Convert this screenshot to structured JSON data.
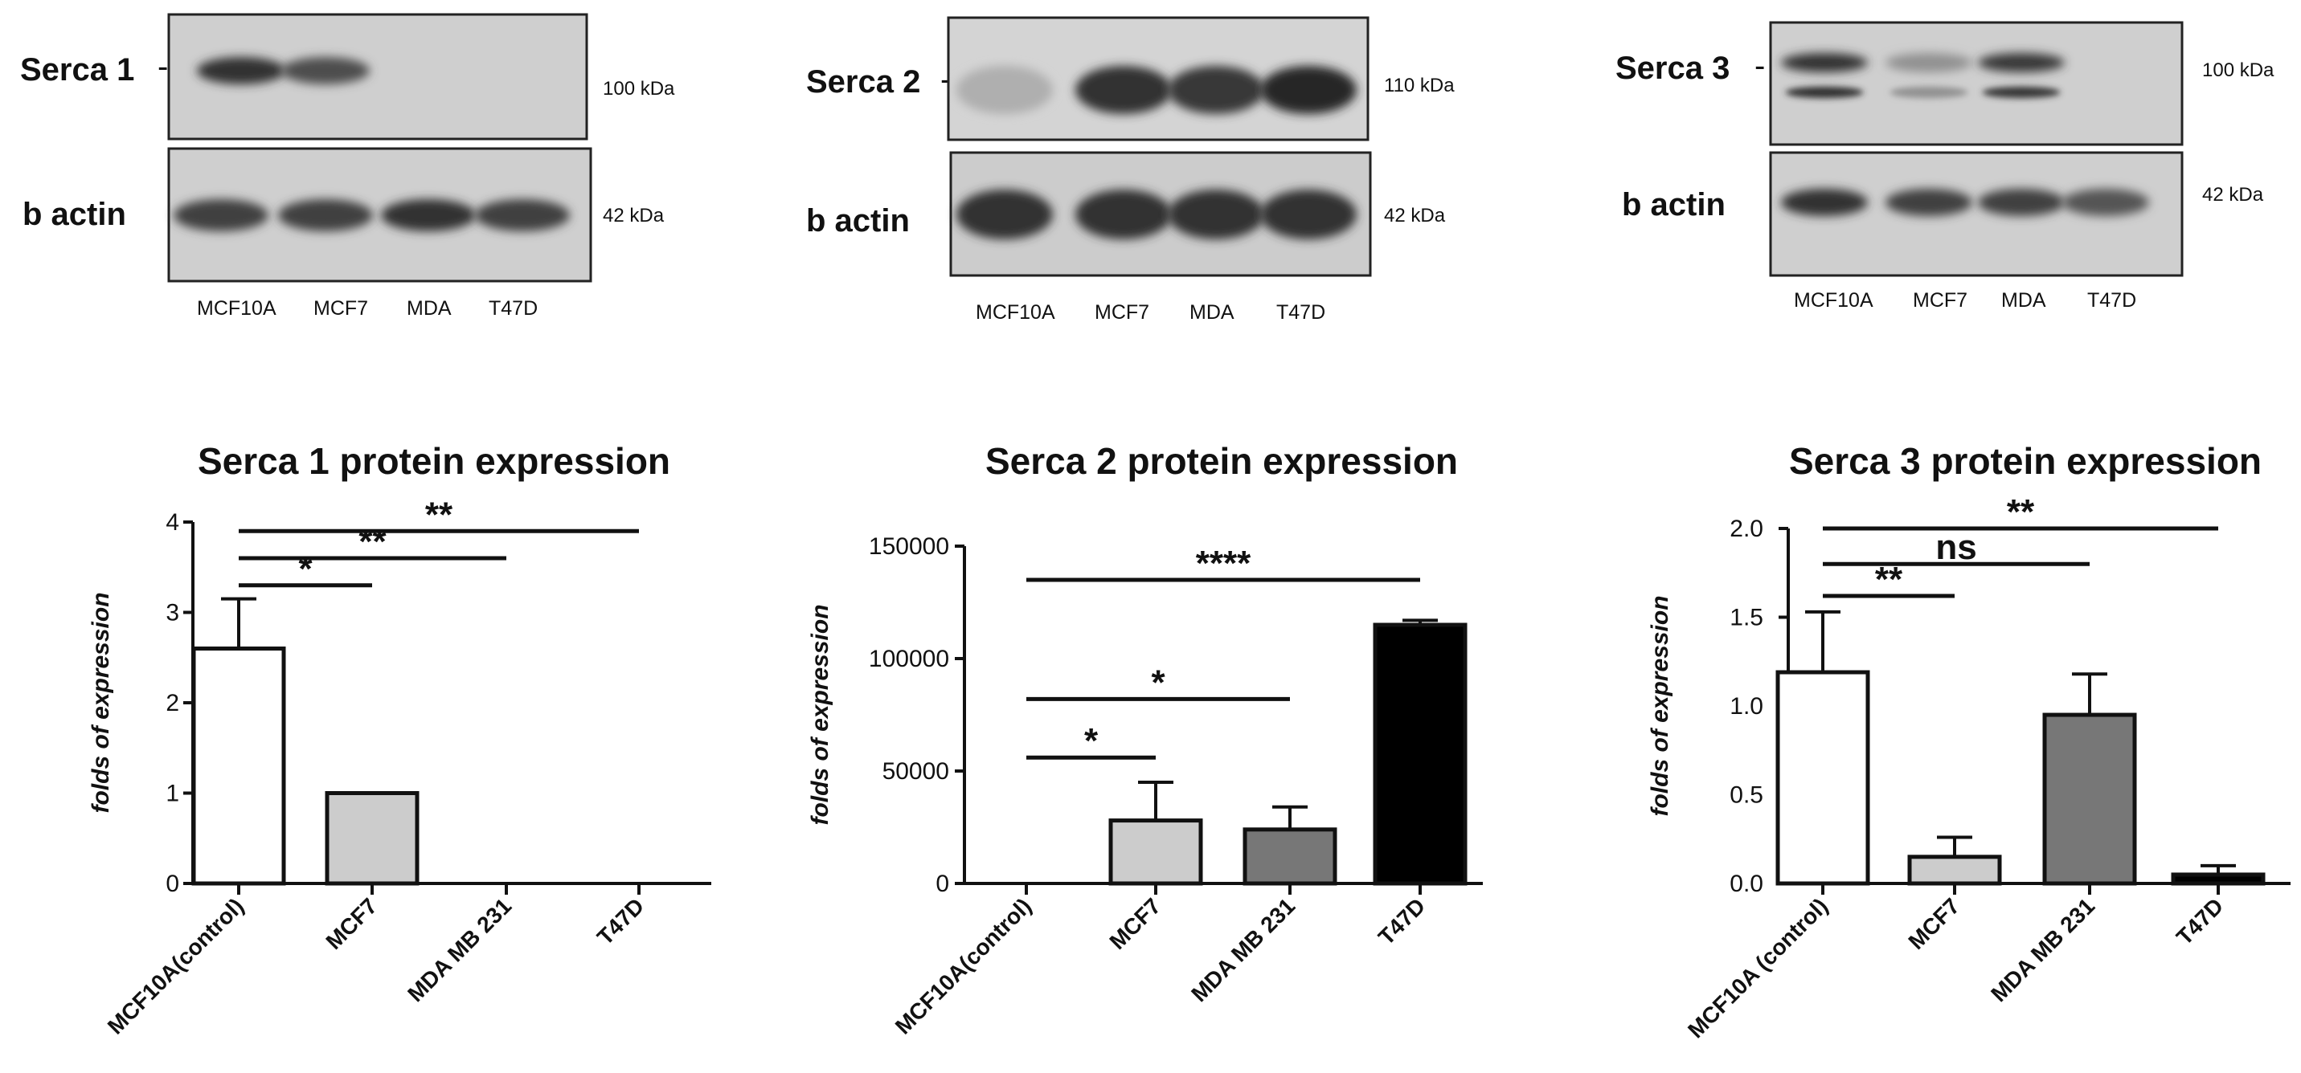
{
  "blots": [
    {
      "target_label": "Serca 1",
      "target_kda": "100 kDa",
      "actin_label": "b actin",
      "actin_kda": "42 kDa",
      "lanes": [
        "MCF10A",
        "MCF7",
        "MDA",
        "T47D"
      ],
      "target_band_intensity": [
        0.95,
        0.75,
        0.0,
        0.0
      ],
      "actin_band_intensity": [
        0.85,
        0.85,
        0.95,
        0.85
      ]
    },
    {
      "target_label": "Serca 2",
      "target_kda": "110 kDa",
      "actin_label": "b actin",
      "actin_kda": "42 kDa",
      "lanes": [
        "MCF10A",
        "MCF7",
        "MDA",
        "T47D"
      ],
      "target_band_intensity": [
        0.1,
        0.95,
        0.9,
        1.0
      ],
      "actin_band_intensity": [
        0.95,
        0.95,
        0.95,
        0.95
      ]
    },
    {
      "target_label": "Serca 3",
      "target_kda": "100 kDa",
      "actin_label": "b actin",
      "actin_kda": "42 kDa",
      "lanes": [
        "MCF10A",
        "MCF7",
        "MDA",
        "T47D"
      ],
      "target_band_intensity": [
        0.95,
        0.3,
        0.9,
        0.0
      ],
      "actin_band_intensity": [
        0.95,
        0.85,
        0.85,
        0.7
      ]
    }
  ],
  "chart_data": [
    {
      "type": "bar",
      "title": "Serca 1 protein expression",
      "ylabel": "folds of expression",
      "categories": [
        "MCF10A(control)",
        "MCF7",
        "MDA MB 231",
        "T47D"
      ],
      "values": [
        2.6,
        1.0,
        0.0,
        0.0
      ],
      "errors": [
        0.55,
        0,
        0,
        0
      ],
      "bar_colors": [
        "#ffffff",
        "#cccccc",
        "#777777",
        "#000000"
      ],
      "ylim": [
        0,
        4
      ],
      "yticks": [
        "0",
        "1",
        "2",
        "3",
        "4"
      ],
      "significance": [
        {
          "from": 0,
          "to": 1,
          "y": 3.3,
          "label": "*"
        },
        {
          "from": 0,
          "to": 2,
          "y": 3.6,
          "label": "**"
        },
        {
          "from": 0,
          "to": 3,
          "y": 3.9,
          "label": "**"
        }
      ]
    },
    {
      "type": "bar",
      "title": "Serca 2 protein expression",
      "ylabel": "folds of expression",
      "categories": [
        "MCF10A(control)",
        "MCF7",
        "MDA MB 231",
        "T47D"
      ],
      "values": [
        0,
        28000,
        24000,
        115000
      ],
      "errors": [
        0,
        17000,
        10000,
        2000
      ],
      "bar_colors": [
        "#ffffff",
        "#cccccc",
        "#777777",
        "#000000"
      ],
      "ylim": [
        0,
        150000
      ],
      "yticks": [
        "0",
        "50000",
        "100000",
        "150000"
      ],
      "significance": [
        {
          "from": 0,
          "to": 1,
          "y": 56000,
          "label": "*"
        },
        {
          "from": 0,
          "to": 2,
          "y": 82000,
          "label": "*"
        },
        {
          "from": 0,
          "to": 3,
          "y": 135000,
          "label": "****"
        }
      ]
    },
    {
      "type": "bar",
      "title": "Serca 3 protein expression",
      "ylabel": "folds of expression",
      "categories": [
        "MCF10A (control)",
        "MCF7",
        "MDA MB 231",
        "T47D"
      ],
      "values": [
        1.19,
        0.15,
        0.95,
        0.05
      ],
      "errors": [
        0.34,
        0.11,
        0.23,
        0.05
      ],
      "bar_colors": [
        "#ffffff",
        "#cccccc",
        "#777777",
        "#000000"
      ],
      "ylim": [
        0,
        2.0
      ],
      "yticks": [
        "0.0",
        "0.5",
        "1.0",
        "1.5",
        "2.0"
      ],
      "significance": [
        {
          "from": 0,
          "to": 1,
          "y": 1.62,
          "label": "**"
        },
        {
          "from": 0,
          "to": 2,
          "y": 1.8,
          "label": "ns"
        },
        {
          "from": 0,
          "to": 3,
          "y": 2.0,
          "label": "**"
        }
      ]
    }
  ]
}
